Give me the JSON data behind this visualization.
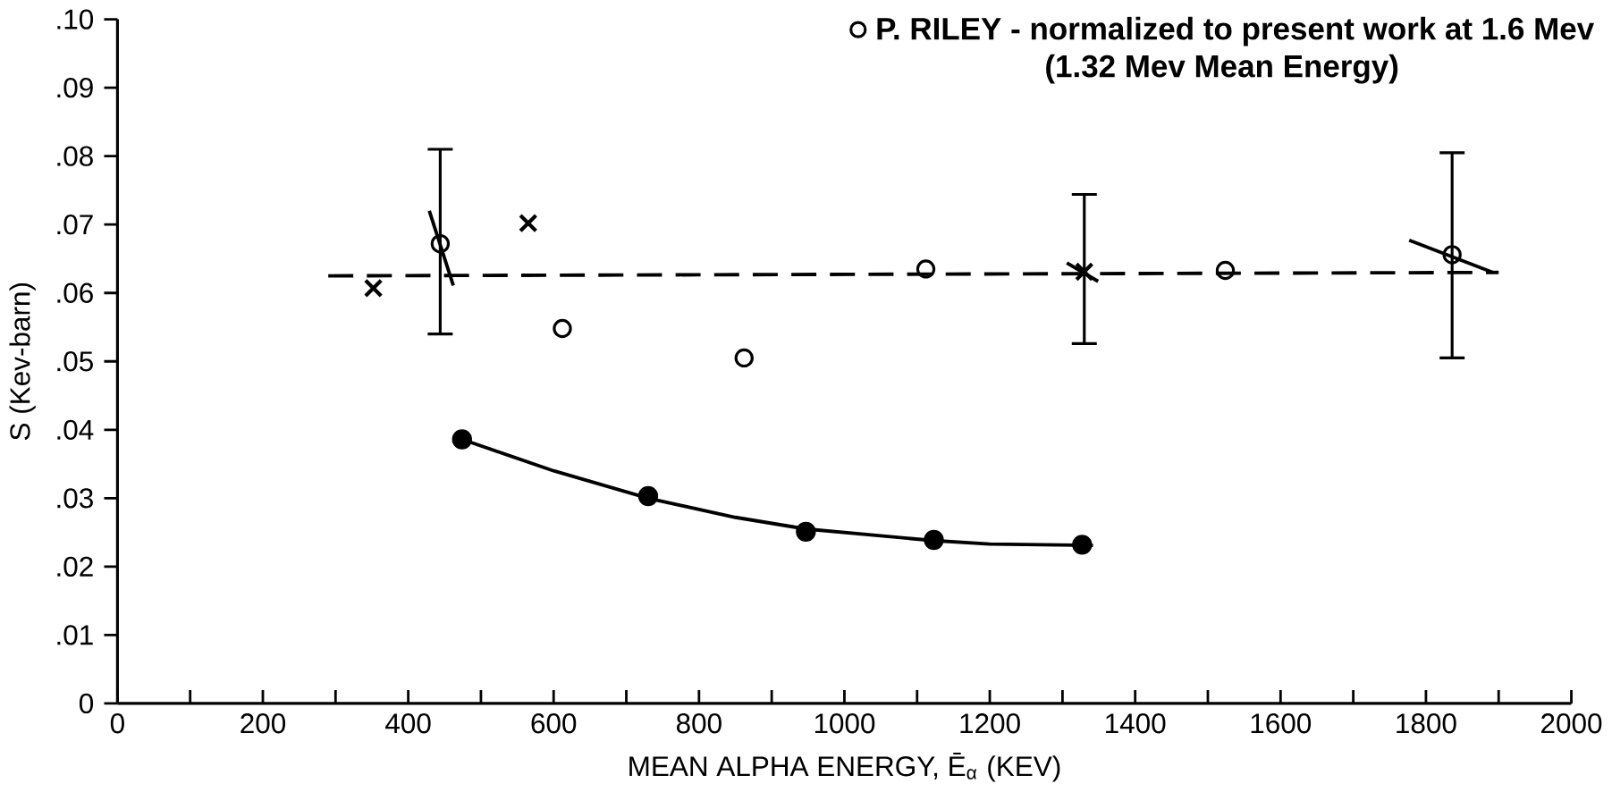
{
  "chart_data": {
    "type": "scatter",
    "xlabel": "MEAN ALPHA ENERGY, Ē$_{α}$ (KEV)",
    "ylabel": "S (Kev-barn)",
    "annotations": [
      "(1.32 Mev Mean Energy)"
    ],
    "legend": "top right",
    "xlim": [
      0,
      2000
    ],
    "ylim": [
      0,
      0.1
    ],
    "xticks": [
      0,
      {
        "value": 100,
        "label": null
      },
      200,
      {
        "value": 300,
        "label": null
      },
      400,
      {
        "value": 500,
        "label": null
      },
      600,
      {
        "value": 700,
        "label": null
      },
      800,
      {
        "value": 900,
        "label": null
      },
      1000,
      {
        "value": 1100,
        "label": null
      },
      1200,
      {
        "value": 1300,
        "label": null
      },
      1400,
      {
        "value": 1500,
        "label": null
      },
      1600,
      {
        "value": 1700,
        "label": null
      },
      1800,
      {
        "value": 1900,
        "label": null
      },
      2000
    ],
    "yticks": [
      0,
      {
        "value": 0.01,
        "label": ".01"
      },
      {
        "value": 0.02,
        "label": ".02"
      },
      {
        "value": 0.03,
        "label": ".03"
      },
      {
        "value": 0.04,
        "label": ".04"
      },
      {
        "value": 0.05,
        "label": ".05"
      },
      {
        "value": 0.06,
        "label": ".06"
      },
      {
        "value": 0.07,
        "label": ".07"
      },
      {
        "value": 0.08,
        "label": ".08"
      },
      {
        "value": 0.09,
        "label": ".09"
      },
      {
        "value": 0.1,
        "label": ".10"
      }
    ],
    "series": [
      {
        "marker": "filled circle",
        "color": "#000000",
        "x": [
          474,
          730,
          947,
          1123,
          1327
        ],
        "values": [
          0.0386,
          0.0303,
          0.0251,
          0.0239,
          0.0232
        ]
      },
      {
        "marker": "circle",
        "color": "#000000",
        "name": "P. RILEY - normalized to present work at 1.6 Mev",
        "x": [
          444,
          612,
          862,
          1112,
          1524,
          1836
        ],
        "values": [
          0.0672,
          0.0548,
          0.0505,
          0.0635,
          0.0633,
          0.0656
        ],
        "errors": [
          [
            0.054,
            0.081
          ],
          null,
          null,
          null,
          null,
          [
            0.0505,
            0.0805
          ]
        ]
      },
      {
        "marker": "cross",
        "color": "#000000",
        "x": [
          352,
          565,
          1330
        ],
        "values": [
          0.0607,
          0.0702,
          0.0631
        ],
        "errors": [
          null,
          null,
          [
            0.0526,
            0.0744
          ]
        ]
      },
      {
        "type": "line",
        "line_style": "solid",
        "color": "#000000",
        "x": [
          474,
          600,
          730,
          850,
          947,
          1050,
          1123,
          1200,
          1342
        ],
        "values": [
          0.0386,
          0.034,
          0.03,
          0.0272,
          0.0255,
          0.0245,
          0.0238,
          0.0233,
          0.0231
        ]
      },
      {
        "type": "line",
        "line_style": "dashed",
        "color": "#000000",
        "x": [
          290,
          1900
        ],
        "values": [
          0.0625,
          0.063
        ]
      },
      {
        "type": "line",
        "line_style": "solid",
        "color": "#000000",
        "x": [
          429,
          462
        ],
        "values": [
          0.072,
          0.0611
        ]
      },
      {
        "type": "line",
        "line_style": "solid",
        "color": "#000000",
        "x": [
          1306,
          1349
        ],
        "values": [
          0.0644,
          0.0617
        ]
      },
      {
        "type": "line",
        "line_style": "solid",
        "color": "#000000",
        "x": [
          1777,
          1892
        ],
        "values": [
          0.0677,
          0.063
        ]
      }
    ]
  }
}
